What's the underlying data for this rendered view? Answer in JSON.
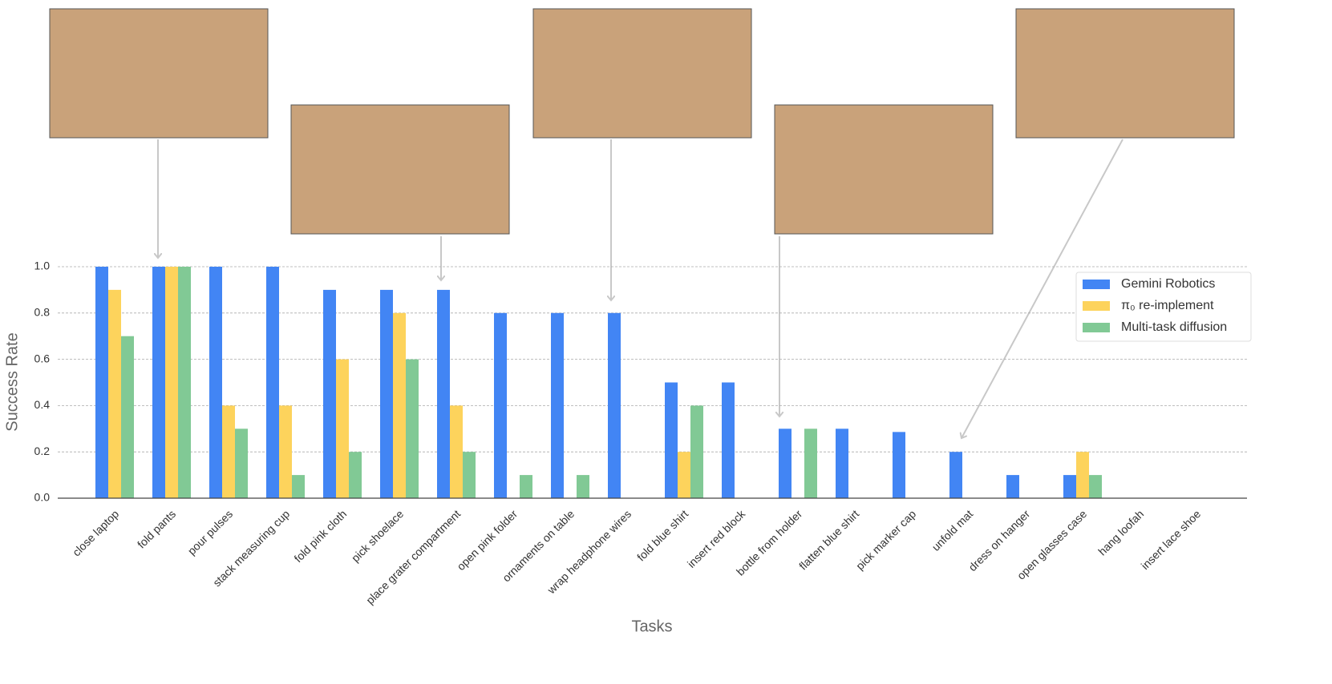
{
  "chart_data": {
    "type": "bar",
    "x_label": "Tasks",
    "y_label": "Success Rate",
    "categories": [
      "close laptop",
      "fold pants",
      "pour pulses",
      "stack measuring cup",
      "fold pink cloth",
      "pick shoelace",
      "place grater compartment",
      "open pink folder",
      "ornaments on table",
      "wrap headphone wires",
      "fold blue shirt",
      "insert red block",
      "bottle from holder",
      "flatten blue shirt",
      "pick marker cap",
      "unfold mat",
      "dress on hanger",
      "open glasses case",
      "hang loofah",
      "insert lace shoe"
    ],
    "series": [
      {
        "name": "Gemini Robotics",
        "color": "#4285f4",
        "values": [
          1.0,
          1.0,
          1.0,
          1.0,
          0.9,
          0.9,
          0.9,
          0.8,
          0.8,
          0.8,
          0.5,
          0.5,
          0.3,
          0.3,
          0.286,
          0.2,
          0.1,
          0.1,
          0,
          0
        ]
      },
      {
        "name": "π₀ re-implement",
        "color": "#fdd35c",
        "values": [
          0.9,
          1.0,
          0.4,
          0.4,
          0.6,
          0.8,
          0.4,
          0,
          0,
          0,
          0.2,
          0,
          0,
          0,
          0,
          0,
          0,
          0.2,
          0,
          0
        ]
      },
      {
        "name": "Multi-task diffusion",
        "color": "#81c995",
        "values": [
          0.7,
          1.0,
          0.3,
          0.1,
          0.2,
          0.6,
          0.2,
          0.1,
          0.1,
          0,
          0.4,
          0,
          0.3,
          0,
          0,
          0,
          0,
          0.1,
          0,
          0
        ]
      }
    ],
    "ylim": [
      0,
      1.0
    ],
    "yticks": [
      {
        "value": 0,
        "label": "0.0"
      },
      0.2,
      0.4,
      0.6,
      0.8,
      {
        "value": 1.0,
        "label": "1.0"
      }
    ],
    "grid": true,
    "legend": "upper right"
  }
}
